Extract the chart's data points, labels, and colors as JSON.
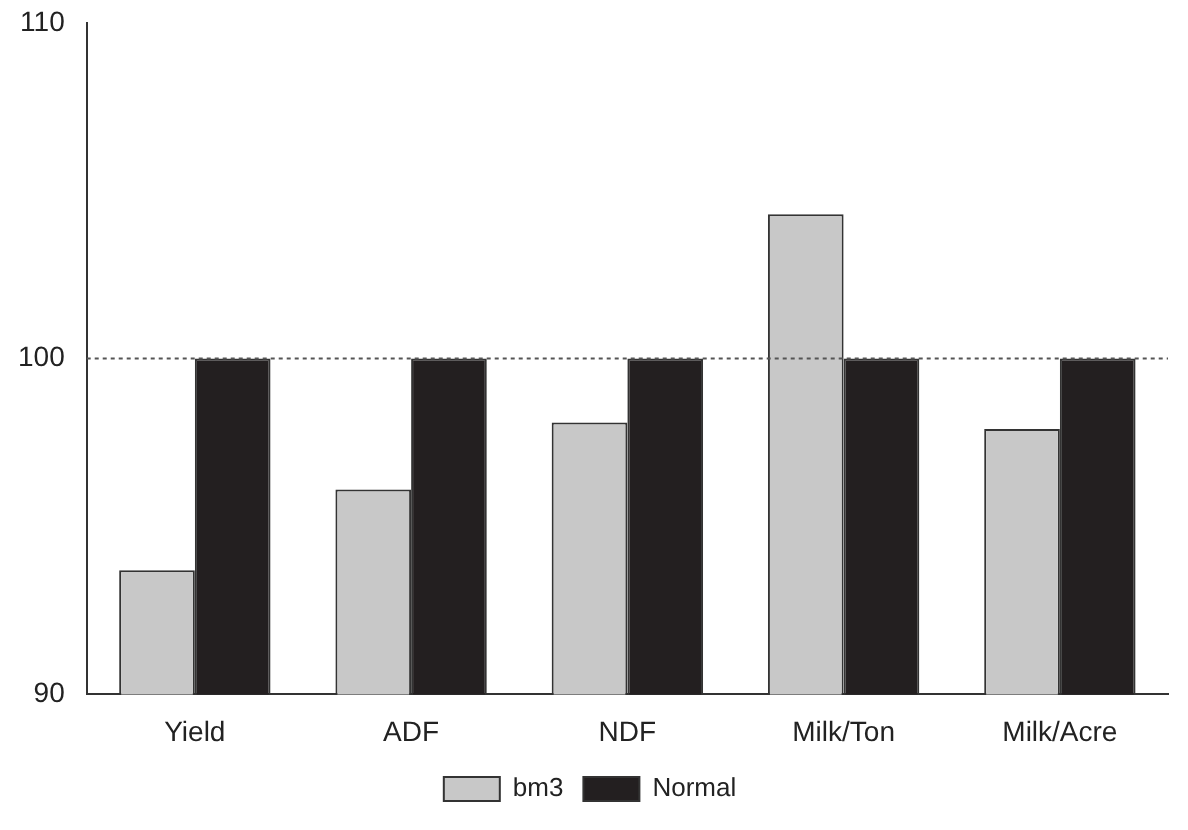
{
  "chart_data": {
    "type": "bar",
    "categories": [
      "Yield",
      "ADF",
      "NDF",
      "Milk/Ton",
      "Milk/Acre"
    ],
    "series": [
      {
        "name": "bm3",
        "color": "#c8c8c8",
        "values": [
          93.7,
          96.1,
          98.1,
          104.3,
          97.9
        ]
      },
      {
        "name": "Normal",
        "color": "#231f20",
        "values": [
          100,
          100,
          100,
          100,
          100
        ]
      }
    ],
    "ylim": [
      90,
      110
    ],
    "yticks": [
      90,
      100,
      110
    ],
    "grid": false,
    "legend": "bottom",
    "ref_lines": [
      {
        "axis": "y",
        "value": 100,
        "color": "#555555",
        "line_style": "dotted"
      }
    ]
  }
}
